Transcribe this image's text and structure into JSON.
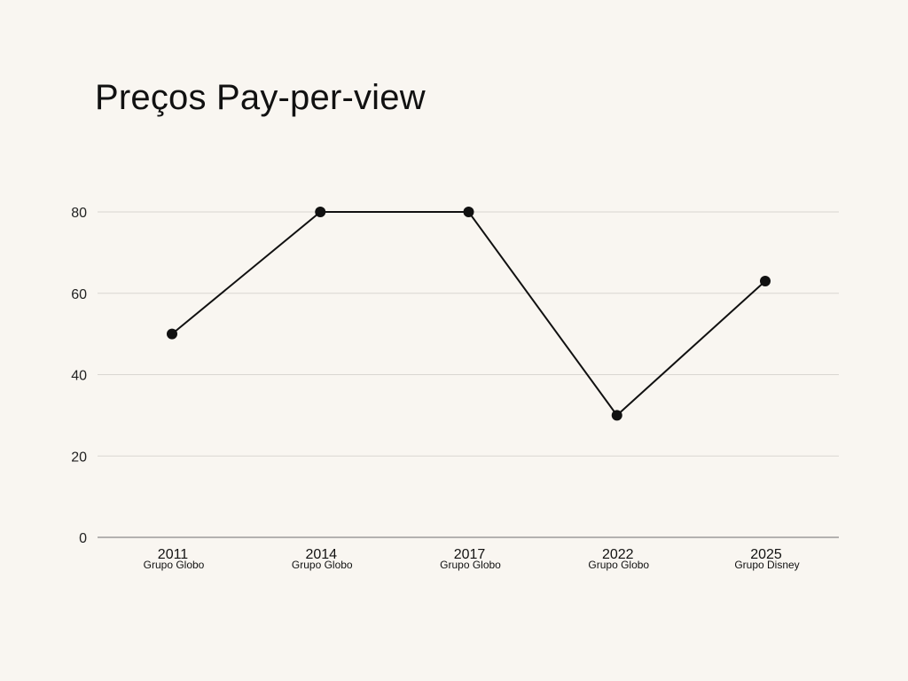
{
  "chart_data": {
    "type": "line",
    "title": "Preços Pay-per-view",
    "xlabel": "",
    "ylabel": "",
    "categories": [
      "2011",
      "2014",
      "2017",
      "2022",
      "2025"
    ],
    "category_sublabels": [
      "Grupo Globo",
      "Grupo Globo",
      "Grupo Globo",
      "Grupo Globo",
      "Grupo Disney"
    ],
    "series": [
      {
        "values": [
          50,
          80,
          80,
          30,
          63
        ]
      }
    ],
    "ylim": [
      0,
      80
    ],
    "yticks": [
      0,
      20,
      40,
      60,
      80
    ],
    "grid": true,
    "legend": "none"
  },
  "colors": {
    "background": "#f9f6f1",
    "line": "#111111",
    "grid": "#d9d6d1",
    "axis": "#8a8a8a"
  }
}
